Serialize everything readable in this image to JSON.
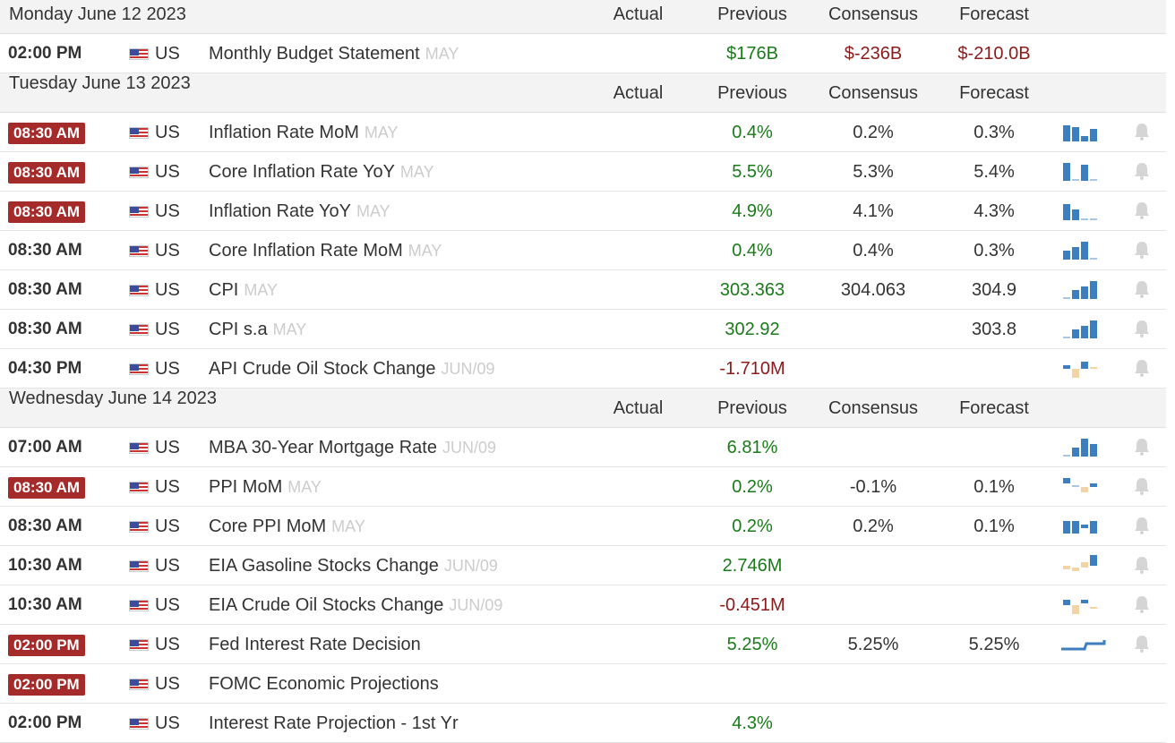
{
  "columns": {
    "actual": "Actual",
    "previous": "Previous",
    "consensus": "Consensus",
    "forecast": "Forecast"
  },
  "days": [
    {
      "date": "Monday June 12 2023",
      "events": [
        {
          "time": "02:00 PM",
          "highlight": false,
          "country": "US",
          "event": "Monthly Budget Statement",
          "ref": "MAY",
          "actual": "",
          "previous": "$176B",
          "previous_tone": "pos",
          "consensus": "$-236B",
          "consensus_tone": "neg",
          "forecast": "$-210.0B",
          "forecast_tone": "neg",
          "spark": null
        }
      ]
    },
    {
      "date": "Tuesday June 13 2023",
      "events": [
        {
          "time": "08:30 AM",
          "highlight": true,
          "country": "US",
          "event": "Inflation Rate MoM",
          "ref": "MAY",
          "actual": "",
          "previous": "0.4%",
          "previous_tone": "pos",
          "consensus": "0.2%",
          "consensus_tone": "neu",
          "forecast": "0.3%",
          "forecast_tone": "neu",
          "spark": "bars-a"
        },
        {
          "time": "08:30 AM",
          "highlight": true,
          "country": "US",
          "event": "Core Inflation Rate YoY",
          "ref": "MAY",
          "actual": "",
          "previous": "5.5%",
          "previous_tone": "pos",
          "consensus": "5.3%",
          "consensus_tone": "neu",
          "forecast": "5.4%",
          "forecast_tone": "neu",
          "spark": "bars-b"
        },
        {
          "time": "08:30 AM",
          "highlight": true,
          "country": "US",
          "event": "Inflation Rate YoY",
          "ref": "MAY",
          "actual": "",
          "previous": "4.9%",
          "previous_tone": "pos",
          "consensus": "4.1%",
          "consensus_tone": "neu",
          "forecast": "4.3%",
          "forecast_tone": "neu",
          "spark": "bars-c"
        },
        {
          "time": "08:30 AM",
          "highlight": false,
          "country": "US",
          "event": "Core Inflation Rate MoM",
          "ref": "MAY",
          "actual": "",
          "previous": "0.4%",
          "previous_tone": "pos",
          "consensus": "0.4%",
          "consensus_tone": "neu",
          "forecast": "0.3%",
          "forecast_tone": "neu",
          "spark": "bars-d"
        },
        {
          "time": "08:30 AM",
          "highlight": false,
          "country": "US",
          "event": "CPI",
          "ref": "MAY",
          "actual": "",
          "previous": "303.363",
          "previous_tone": "pos",
          "consensus": "304.063",
          "consensus_tone": "neu",
          "forecast": "304.9",
          "forecast_tone": "neu",
          "spark": "bars-up"
        },
        {
          "time": "08:30 AM",
          "highlight": false,
          "country": "US",
          "event": "CPI s.a",
          "ref": "MAY",
          "actual": "",
          "previous": "302.92",
          "previous_tone": "pos",
          "consensus": "",
          "consensus_tone": "neu",
          "forecast": "303.8",
          "forecast_tone": "neu",
          "spark": "bars-up"
        },
        {
          "time": "04:30 PM",
          "highlight": false,
          "country": "US",
          "event": "API Crude Oil Stock Change",
          "ref": "JUN/09",
          "actual": "",
          "previous": "-1.710M",
          "previous_tone": "neg",
          "consensus": "",
          "consensus_tone": "neu",
          "forecast": "",
          "forecast_tone": "neu",
          "spark": "mixed-a"
        }
      ]
    },
    {
      "date": "Wednesday June 14 2023",
      "events": [
        {
          "time": "07:00 AM",
          "highlight": false,
          "country": "US",
          "event": "MBA 30-Year Mortgage Rate",
          "ref": "JUN/09",
          "actual": "",
          "previous": "6.81%",
          "previous_tone": "pos",
          "consensus": "",
          "consensus_tone": "neu",
          "forecast": "",
          "forecast_tone": "neu",
          "spark": "bars-e"
        },
        {
          "time": "08:30 AM",
          "highlight": true,
          "country": "US",
          "event": "PPI MoM",
          "ref": "MAY",
          "actual": "",
          "previous": "0.2%",
          "previous_tone": "pos",
          "consensus": "-0.1%",
          "consensus_tone": "neu",
          "forecast": "0.1%",
          "forecast_tone": "neu",
          "spark": "mixed-b"
        },
        {
          "time": "08:30 AM",
          "highlight": false,
          "country": "US",
          "event": "Core PPI MoM",
          "ref": "MAY",
          "actual": "",
          "previous": "0.2%",
          "previous_tone": "pos",
          "consensus": "0.2%",
          "consensus_tone": "neu",
          "forecast": "0.1%",
          "forecast_tone": "neu",
          "spark": "bars-f"
        },
        {
          "time": "10:30 AM",
          "highlight": false,
          "country": "US",
          "event": "EIA Gasoline Stocks Change",
          "ref": "JUN/09",
          "actual": "",
          "previous": "2.746M",
          "previous_tone": "pos",
          "consensus": "",
          "consensus_tone": "neu",
          "forecast": "",
          "forecast_tone": "neu",
          "spark": "mixed-c"
        },
        {
          "time": "10:30 AM",
          "highlight": false,
          "country": "US",
          "event": "EIA Crude Oil Stocks Change",
          "ref": "JUN/09",
          "actual": "",
          "previous": "-0.451M",
          "previous_tone": "neg",
          "consensus": "",
          "consensus_tone": "neu",
          "forecast": "",
          "forecast_tone": "neu",
          "spark": "mixed-d"
        },
        {
          "time": "02:00 PM",
          "highlight": true,
          "country": "US",
          "event": "Fed Interest Rate Decision",
          "ref": "",
          "actual": "",
          "previous": "5.25%",
          "previous_tone": "pos",
          "consensus": "5.25%",
          "consensus_tone": "neu",
          "forecast": "5.25%",
          "forecast_tone": "neu",
          "spark": "line"
        },
        {
          "time": "02:00 PM",
          "highlight": true,
          "country": "US",
          "event": "FOMC Economic Projections",
          "ref": "",
          "actual": "",
          "previous": "",
          "previous_tone": "pos",
          "consensus": "",
          "consensus_tone": "neu",
          "forecast": "",
          "forecast_tone": "neu",
          "spark": null
        },
        {
          "time": "02:00 PM",
          "highlight": false,
          "country": "US",
          "event": "Interest Rate Projection - 1st Yr",
          "ref": "",
          "actual": "",
          "previous": "4.3%",
          "previous_tone": "pos",
          "consensus": "",
          "consensus_tone": "neu",
          "forecast": "",
          "forecast_tone": "neu",
          "spark": null
        }
      ]
    }
  ]
}
